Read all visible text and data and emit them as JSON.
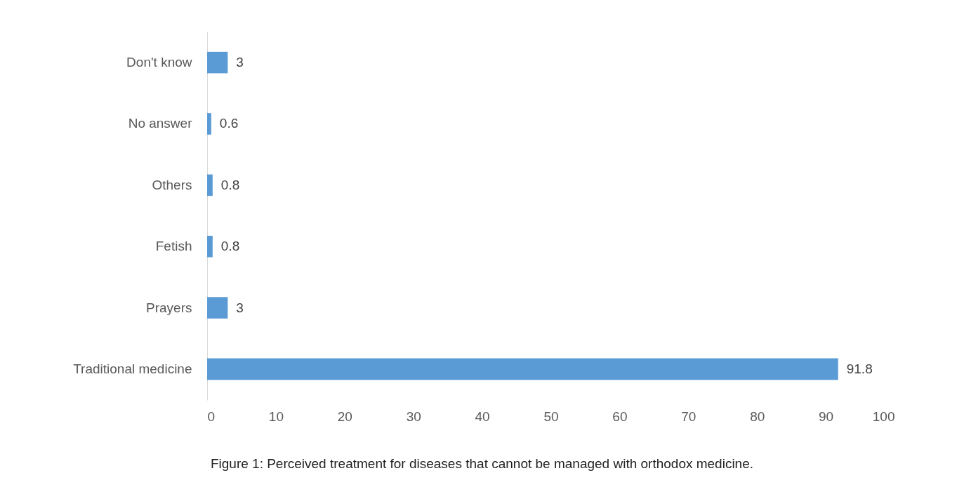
{
  "chart_data": {
    "type": "bar",
    "orientation": "horizontal",
    "categories": [
      "Don't know",
      "No answer",
      "Others",
      "Fetish",
      "Prayers",
      "Traditional medicine"
    ],
    "values": [
      3,
      0.6,
      0.8,
      0.8,
      3,
      91.8
    ],
    "color": "#5b9bd5",
    "xlim": [
      0,
      100
    ],
    "xticks": [
      0,
      10,
      20,
      30,
      40,
      50,
      60,
      70,
      80,
      90,
      100
    ],
    "grid": false,
    "data_labels": true,
    "annotations": [
      "Figure 1: Perceived treatment for diseases that cannot be managed with orthodox medicine."
    ]
  }
}
